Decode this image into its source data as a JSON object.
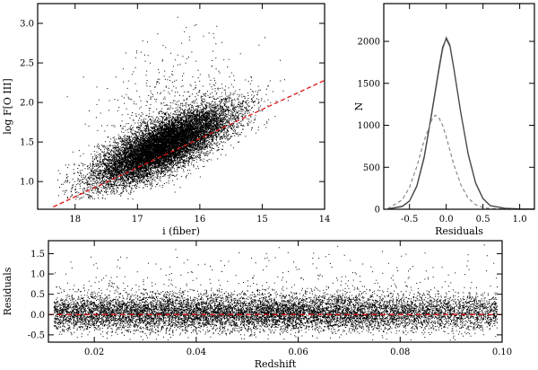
{
  "chart_data": [
    {
      "type": "scatter",
      "xlabel": "i (fiber)",
      "ylabel": "log F[O III]",
      "xlim": [
        18.6,
        14.0
      ],
      "ylim": [
        0.65,
        3.25
      ],
      "x_reversed": true,
      "xticks": [
        18,
        17,
        16,
        15,
        14
      ],
      "yticks": [
        1.0,
        1.5,
        2.0,
        2.5,
        3.0
      ],
      "xtick_labels": [
        "18",
        "17",
        "16",
        "15",
        "14"
      ],
      "ytick_labels": [
        "1.0",
        "1.5",
        "2.0",
        "2.5",
        "3.0"
      ],
      "cloud": {
        "center": [
          16.6,
          1.45
        ],
        "slope": -0.35,
        "scatter": 0.16,
        "n_points": 14000
      },
      "fit_line": {
        "points": [
          [
            18.35,
            0.68
          ],
          [
            14.0,
            2.28
          ]
        ],
        "color": "#dd1111",
        "style": "dashed"
      },
      "point_color": "#000000"
    },
    {
      "type": "line",
      "xlabel": "Residuals",
      "ylabel": "N",
      "xlim": [
        -0.85,
        1.2
      ],
      "ylim": [
        0,
        2450
      ],
      "xticks": [
        -0.5,
        0.0,
        0.5,
        1.0
      ],
      "yticks": [
        0,
        500,
        1000,
        1500,
        2000
      ],
      "xtick_labels": [
        "-0.5",
        "0.0",
        "0.5",
        "1.0"
      ],
      "ytick_labels": [
        "0",
        "500",
        "1000",
        "1500",
        "2000"
      ],
      "series": [
        {
          "x": [
            -0.8,
            -0.6,
            -0.5,
            -0.4,
            -0.3,
            -0.2,
            -0.1,
            -0.05,
            0.0,
            0.05,
            0.1,
            0.2,
            0.3,
            0.4,
            0.5,
            0.6,
            0.8,
            1.0,
            1.2
          ],
          "values": [
            2,
            30,
            95,
            270,
            610,
            1120,
            1650,
            1900,
            2050,
            1960,
            1700,
            1150,
            660,
            320,
            130,
            45,
            12,
            4,
            1
          ],
          "color": "#777777",
          "style": "solid"
        },
        {
          "x": [
            -0.8,
            -0.6,
            -0.5,
            -0.4,
            -0.3,
            -0.2,
            -0.1,
            -0.05,
            0.0,
            0.05,
            0.1,
            0.2,
            0.3,
            0.4,
            0.5,
            0.6,
            0.8,
            1.0,
            1.2
          ],
          "values": [
            3,
            36,
            100,
            280,
            630,
            1140,
            1680,
            1930,
            2030,
            1940,
            1690,
            1140,
            650,
            310,
            125,
            42,
            11,
            3,
            1
          ],
          "color": "#444444",
          "style": "solid"
        },
        {
          "x": [
            -0.8,
            -0.6,
            -0.5,
            -0.4,
            -0.3,
            -0.2,
            -0.15,
            -0.1,
            -0.05,
            0.0,
            0.05,
            0.1,
            0.2,
            0.3,
            0.4,
            0.5,
            0.6,
            0.8,
            1.0,
            1.2
          ],
          "values": [
            5,
            110,
            260,
            510,
            820,
            1060,
            1120,
            1090,
            1000,
            860,
            700,
            540,
            290,
            130,
            55,
            20,
            8,
            2,
            0,
            0
          ],
          "color": "#888888",
          "style": "dashed"
        }
      ]
    },
    {
      "type": "scatter",
      "xlabel": "Redshift",
      "ylabel": "Residuals",
      "xlim": [
        0.011,
        0.1
      ],
      "ylim": [
        -0.68,
        1.82
      ],
      "xticks": [
        0.02,
        0.04,
        0.06,
        0.08,
        0.1
      ],
      "yticks": [
        -0.5,
        0.0,
        0.5,
        1.0,
        1.5
      ],
      "xtick_labels": [
        "0.02",
        "0.04",
        "0.06",
        "0.08",
        "0.10"
      ],
      "ytick_labels": [
        "-0.5",
        "0.0",
        "0.5",
        "1.0",
        "1.5"
      ],
      "cloud": {
        "center_y": 0.05,
        "scatter": 0.22,
        "n_points": 13000
      },
      "zero_line": {
        "y": 0.0,
        "color": "#dd1111",
        "style": "dashed"
      },
      "point_color": "#000000"
    }
  ]
}
